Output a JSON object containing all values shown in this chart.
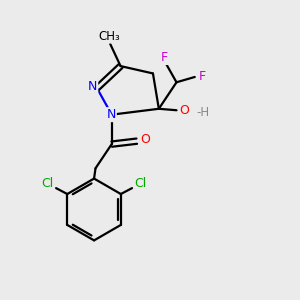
{
  "background_color": "#ebebeb",
  "bond_color": "#000000",
  "atom_colors": {
    "N": "#0000ff",
    "O": "#ff0000",
    "F": "#cc00cc",
    "Cl": "#00aa00",
    "H_gray": "#888888",
    "C": "#000000"
  },
  "figsize": [
    3.0,
    3.0
  ],
  "dpi": 100
}
